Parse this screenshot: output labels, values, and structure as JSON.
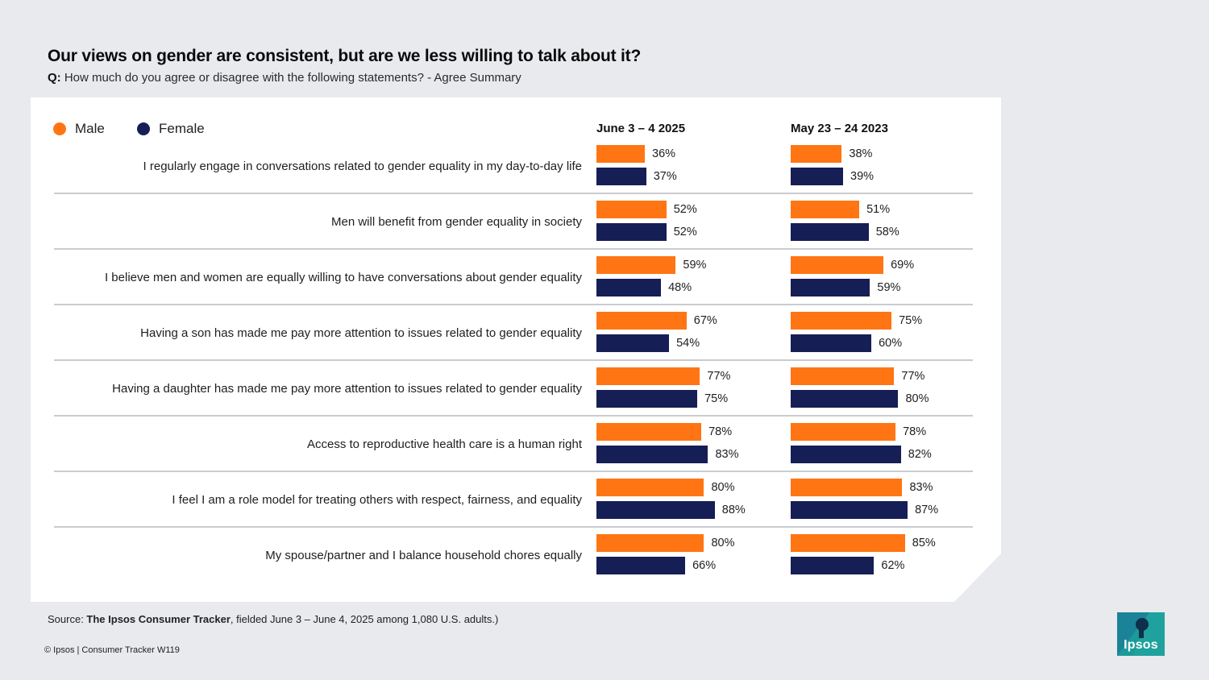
{
  "title": "Our views on gender are consistent, but are we less willing to talk about it?",
  "question": {
    "prefix": "Q:",
    "text": "How much do you agree or disagree with the following statements? - Agree Summary"
  },
  "colors": {
    "male": "#ff7514",
    "female": "#161e56",
    "logo": "#1a9b98"
  },
  "chart_data": {
    "type": "bar",
    "orientation": "horizontal",
    "legend": [
      "Male",
      "Female"
    ],
    "legend_position": "top-left",
    "groups": [
      "June 3 – 4 2025",
      "May 23 – 24 2023"
    ],
    "categories": [
      "I regularly engage in conversations related to gender equality in my day-to-day life",
      "Men will benefit from gender equality in society",
      "I believe men and women are equally willing to have conversations about gender equality",
      "Having a son has made me pay more attention to issues related to gender equality",
      "Having a daughter has made me pay more attention to issues related to gender equality",
      "Access to reproductive health care is a human right",
      "I feel I am a role model for treating others with respect, fairness, and equality",
      "My spouse/partner and I balance household chores equally"
    ],
    "series": [
      {
        "name": "Male",
        "group": "June 3 – 4 2025",
        "values": [
          36,
          52,
          59,
          67,
          77,
          78,
          80,
          80
        ]
      },
      {
        "name": "Female",
        "group": "June 3 – 4 2025",
        "values": [
          37,
          52,
          48,
          54,
          75,
          83,
          88,
          66
        ]
      },
      {
        "name": "Male",
        "group": "May 23 – 24 2023",
        "values": [
          38,
          51,
          69,
          75,
          77,
          78,
          83,
          85
        ]
      },
      {
        "name": "Female",
        "group": "May 23 – 24 2023",
        "values": [
          39,
          58,
          59,
          60,
          80,
          82,
          87,
          62
        ]
      }
    ],
    "unit": "%",
    "xlim": [
      0,
      100
    ]
  },
  "source": {
    "prefix": "Source: ",
    "bold": "The Ipsos Consumer Tracker",
    "rest": ", fielded June 3 – June 4, 2025 among 1,080 U.S. adults.)"
  },
  "copyright": "© Ipsos | Consumer Tracker W119",
  "logo_text": "Ipsos"
}
